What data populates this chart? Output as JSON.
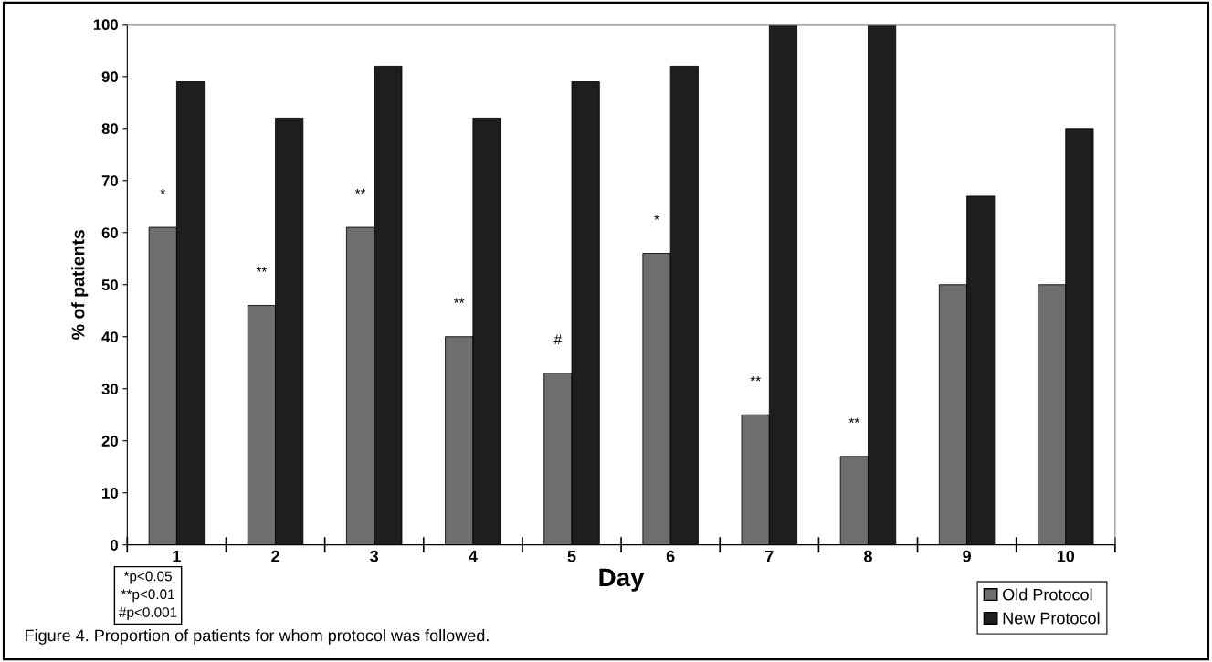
{
  "chart_data": {
    "type": "bar",
    "xlabel": "Day",
    "ylabel": "% of patients",
    "categories": [
      "1",
      "2",
      "3",
      "4",
      "5",
      "6",
      "7",
      "8",
      "9",
      "10"
    ],
    "series": [
      {
        "name": "Old Protocol",
        "color": "#6e6e6e",
        "values": [
          61,
          46,
          61,
          40,
          33,
          56,
          25,
          17,
          50,
          50
        ]
      },
      {
        "name": "New Protocol",
        "color": "#1e1e1e",
        "values": [
          89,
          82,
          92,
          82,
          89,
          92,
          100,
          100,
          67,
          80
        ]
      }
    ],
    "ylim": [
      0,
      100
    ],
    "yticks": [
      0,
      10,
      20,
      30,
      40,
      50,
      60,
      70,
      80,
      90,
      100
    ],
    "grid": false,
    "legend": "bottom right",
    "annotations": [
      {
        "text": "*",
        "x": "1",
        "y": 66
      },
      {
        "text": "**",
        "x": "2",
        "y": 51
      },
      {
        "text": "**",
        "x": "3",
        "y": 66
      },
      {
        "text": "**",
        "x": "4",
        "y": 45
      },
      {
        "text": "#",
        "x": "5",
        "y": 38
      },
      {
        "text": "*",
        "x": "6",
        "y": 61
      },
      {
        "text": "**",
        "x": "7",
        "y": 30
      },
      {
        "text": "**",
        "x": "8",
        "y": 22
      },
      "*p<0.05\n**p<0.01\n#p<0.001",
      "Figure 4. Proportion of patients for whom protocol was followed."
    ]
  }
}
